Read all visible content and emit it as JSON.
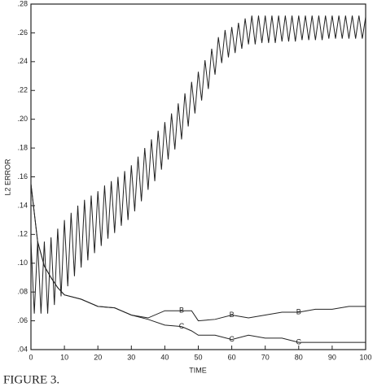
{
  "chart_data": {
    "type": "line",
    "x_label": "TIME",
    "y_label": "L2 ERROR",
    "caption": "FIGURE 3.",
    "xlim": [
      0,
      100
    ],
    "xticks": [
      0,
      10,
      20,
      30,
      40,
      50,
      60,
      70,
      80,
      90,
      100
    ],
    "ylim": [
      0.04,
      0.28
    ],
    "yticks": [
      {
        "value": 0.04,
        "label": ".04"
      },
      {
        "value": 0.06,
        "label": ".06"
      },
      {
        "value": 0.08,
        "label": ".08"
      },
      {
        "value": 0.1,
        "label": ".10"
      },
      {
        "value": 0.12,
        "label": ".12"
      },
      {
        "value": 0.14,
        "label": ".14"
      },
      {
        "value": 0.16,
        "label": ".16"
      },
      {
        "value": 0.18,
        "label": ".18"
      },
      {
        "value": 0.2,
        "label": ".20"
      },
      {
        "value": 0.22,
        "label": ".22"
      },
      {
        "value": 0.24,
        "label": ".24"
      },
      {
        "value": 0.26,
        "label": ".26"
      },
      {
        "value": 0.28,
        "label": ".28"
      }
    ],
    "series": [
      {
        "color": "#222222",
        "x": [
          0,
          1,
          2,
          3,
          4,
          5,
          6,
          7,
          8,
          9,
          10,
          11,
          12,
          13,
          14,
          15,
          16,
          17,
          18,
          19,
          20,
          21,
          22,
          23,
          24,
          25,
          26,
          27,
          28,
          29,
          30,
          31,
          32,
          33,
          34,
          35,
          36,
          37,
          38,
          39,
          40,
          41,
          42,
          43,
          44,
          45,
          46,
          47,
          48,
          49,
          50,
          51,
          52,
          53,
          54,
          55,
          56,
          57,
          58,
          59,
          60,
          61,
          62,
          63,
          64,
          65,
          66,
          67,
          68,
          69,
          70,
          71,
          72,
          73,
          74,
          75,
          76,
          77,
          78,
          79,
          80,
          81,
          82,
          83,
          84,
          85,
          86,
          87,
          88,
          89,
          90,
          91,
          92,
          93,
          94,
          95,
          96,
          97,
          98,
          99,
          100
        ],
        "values": [
          0.115,
          0.065,
          0.115,
          0.065,
          0.115,
          0.065,
          0.118,
          0.071,
          0.124,
          0.077,
          0.13,
          0.084,
          0.135,
          0.091,
          0.14,
          0.097,
          0.144,
          0.102,
          0.147,
          0.107,
          0.15,
          0.112,
          0.154,
          0.117,
          0.157,
          0.121,
          0.16,
          0.126,
          0.164,
          0.13,
          0.168,
          0.136,
          0.174,
          0.143,
          0.18,
          0.151,
          0.186,
          0.157,
          0.192,
          0.165,
          0.198,
          0.172,
          0.204,
          0.179,
          0.211,
          0.186,
          0.218,
          0.195,
          0.226,
          0.204,
          0.233,
          0.213,
          0.241,
          0.221,
          0.249,
          0.231,
          0.257,
          0.239,
          0.262,
          0.243,
          0.264,
          0.246,
          0.267,
          0.249,
          0.27,
          0.252,
          0.272,
          0.252,
          0.272,
          0.253,
          0.272,
          0.253,
          0.272,
          0.253,
          0.272,
          0.254,
          0.272,
          0.254,
          0.272,
          0.254,
          0.272,
          0.255,
          0.272,
          0.255,
          0.272,
          0.255,
          0.272,
          0.255,
          0.272,
          0.256,
          0.272,
          0.256,
          0.272,
          0.256,
          0.272,
          0.256,
          0.272,
          0.256,
          0.272,
          0.256,
          0.271
        ]
      },
      {
        "name": "B",
        "color": "#222222",
        "x": [
          0,
          2,
          4,
          6,
          8,
          10,
          15,
          20,
          25,
          30,
          35,
          40,
          45,
          48,
          50,
          55,
          60,
          65,
          70,
          75,
          80,
          85,
          90,
          95,
          100
        ],
        "values": [
          0.155,
          0.115,
          0.098,
          0.09,
          0.083,
          0.078,
          0.075,
          0.07,
          0.069,
          0.064,
          0.062,
          0.067,
          0.067,
          0.067,
          0.06,
          0.061,
          0.064,
          0.062,
          0.064,
          0.066,
          0.066,
          0.068,
          0.068,
          0.07,
          0.07
        ]
      },
      {
        "name": "C",
        "color": "#222222",
        "x": [
          0,
          2,
          4,
          6,
          8,
          10,
          15,
          20,
          25,
          30,
          35,
          40,
          45,
          48,
          50,
          55,
          60,
          65,
          70,
          75,
          80,
          85,
          90,
          95,
          100
        ],
        "values": [
          0.155,
          0.115,
          0.098,
          0.09,
          0.083,
          0.078,
          0.075,
          0.07,
          0.069,
          0.064,
          0.061,
          0.057,
          0.056,
          0.053,
          0.05,
          0.05,
          0.047,
          0.05,
          0.048,
          0.048,
          0.045,
          0.045,
          0.045,
          0.045,
          0.045
        ]
      }
    ]
  }
}
